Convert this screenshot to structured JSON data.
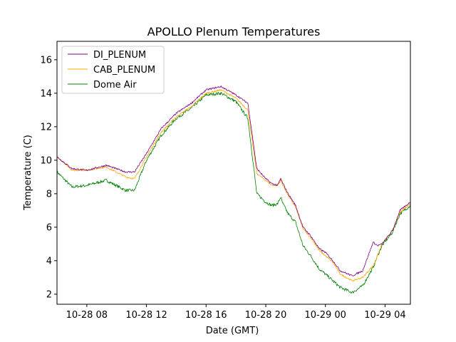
{
  "chart_data": {
    "type": "line",
    "title": "APOLLO Plenum Temperatures",
    "xlabel": "Date (GMT)",
    "ylabel": "Temperature (C)",
    "xlim": [
      6,
      29.7
    ],
    "ylim": [
      1.4,
      17.1
    ],
    "grid": false,
    "legend_position": "upper-left",
    "x_ticks": [
      {
        "value": 8,
        "label": "10-28 08"
      },
      {
        "value": 12,
        "label": "10-28 12"
      },
      {
        "value": 16,
        "label": "10-28 16"
      },
      {
        "value": 20,
        "label": "10-28 20"
      },
      {
        "value": 24,
        "label": "10-29 00"
      },
      {
        "value": 28,
        "label": "10-29 04"
      }
    ],
    "y_ticks": [
      2,
      4,
      6,
      8,
      10,
      12,
      14,
      16
    ],
    "series": [
      {
        "name": "DI_PLENUM",
        "color": "#800080",
        "x": [
          6.0,
          7.0,
          8.0,
          9.3,
          10.6,
          11.2,
          12.0,
          13.0,
          14.0,
          15.0,
          16.0,
          17.0,
          18.0,
          18.8,
          19.4,
          20.0,
          20.4,
          20.8,
          21.0,
          21.1,
          21.5,
          22.0,
          22.5,
          23.0,
          23.6,
          24.0,
          24.5,
          25.0,
          25.8,
          26.5,
          27.2,
          27.5,
          27.8,
          28.5,
          29.0,
          29.7
        ],
        "values": [
          10.2,
          9.5,
          9.4,
          9.7,
          9.3,
          9.3,
          10.4,
          11.9,
          12.8,
          13.4,
          14.2,
          14.4,
          13.9,
          13.4,
          9.5,
          8.9,
          8.6,
          8.5,
          8.9,
          8.7,
          8.0,
          7.3,
          6.0,
          5.5,
          4.7,
          4.5,
          4.0,
          3.4,
          3.1,
          3.4,
          5.1,
          4.9,
          5.0,
          5.8,
          7.0,
          7.5
        ]
      },
      {
        "name": "CAB_PLENUM",
        "color": "#ffa500",
        "x": [
          6.0,
          7.0,
          8.0,
          9.3,
          10.6,
          11.2,
          12.0,
          13.0,
          14.0,
          15.0,
          16.0,
          17.0,
          18.0,
          18.8,
          19.4,
          20.0,
          20.4,
          20.8,
          21.0,
          21.1,
          21.5,
          22.0,
          22.5,
          23.0,
          23.6,
          24.0,
          24.5,
          25.0,
          25.8,
          26.5,
          27.2,
          27.5,
          27.8,
          28.5,
          29.0,
          29.7
        ],
        "values": [
          10.2,
          9.4,
          9.4,
          9.6,
          9.0,
          8.9,
          10.2,
          11.7,
          12.6,
          13.2,
          14.0,
          14.2,
          13.7,
          13.0,
          9.2,
          8.8,
          8.5,
          8.5,
          8.8,
          8.6,
          7.9,
          7.2,
          5.9,
          5.4,
          4.6,
          4.3,
          3.9,
          3.2,
          2.8,
          3.0,
          3.7,
          4.3,
          5.0,
          5.8,
          6.9,
          7.4
        ]
      },
      {
        "name": "Dome Air",
        "color": "#008000",
        "x": [
          6.0,
          7.0,
          8.0,
          9.3,
          10.6,
          11.2,
          12.0,
          13.0,
          14.0,
          15.0,
          16.0,
          17.0,
          18.0,
          18.8,
          19.4,
          20.0,
          20.4,
          20.8,
          21.0,
          21.1,
          21.5,
          22.0,
          22.5,
          23.0,
          23.6,
          24.0,
          24.5,
          25.0,
          25.8,
          26.5,
          27.2,
          27.5,
          27.8,
          28.5,
          29.0,
          29.7
        ],
        "values": [
          9.3,
          8.4,
          8.5,
          8.8,
          8.2,
          8.2,
          10.0,
          11.5,
          12.5,
          13.1,
          13.9,
          14.0,
          13.5,
          12.5,
          8.0,
          7.5,
          7.3,
          7.4,
          7.8,
          7.5,
          6.8,
          6.3,
          4.9,
          4.3,
          3.5,
          3.2,
          2.8,
          2.4,
          2.1,
          2.5,
          3.6,
          4.3,
          4.9,
          5.7,
          6.8,
          7.3
        ]
      }
    ]
  }
}
